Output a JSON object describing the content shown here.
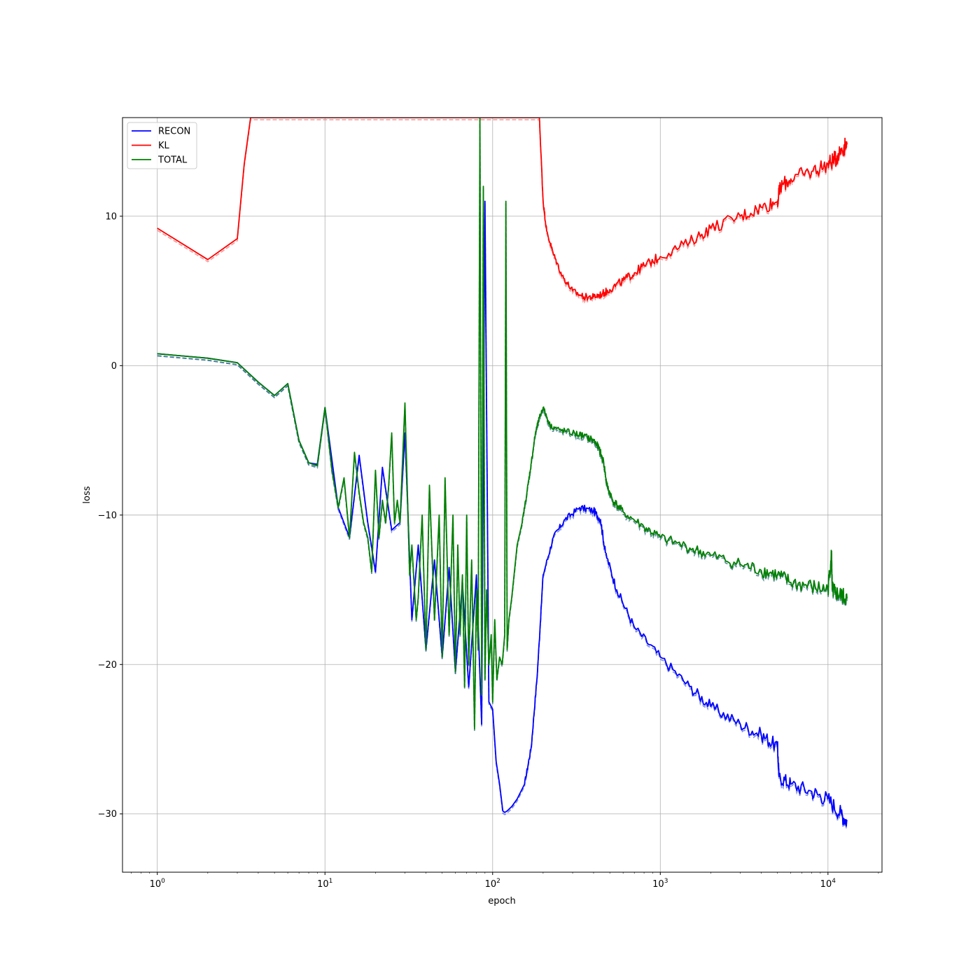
{
  "chart_data": {
    "type": "line",
    "xscale": "log",
    "xlabel": "epoch",
    "ylabel": "loss",
    "xlim": [
      0.62,
      21000
    ],
    "ylim": [
      -33.9,
      16.6
    ],
    "grid": true,
    "legend_position": "top-left",
    "x_ticks": [
      {
        "value": 1,
        "label": "10",
        "exp": "0"
      },
      {
        "value": 10,
        "label": "10",
        "exp": "1"
      },
      {
        "value": 100,
        "label": "10",
        "exp": "2"
      },
      {
        "value": 1000,
        "label": "10",
        "exp": "3"
      },
      {
        "value": 10000,
        "label": "10",
        "exp": "4"
      }
    ],
    "y_ticks": [
      {
        "value": 10,
        "label": "10"
      },
      {
        "value": 0,
        "label": "0"
      },
      {
        "value": -10,
        "label": "−10"
      },
      {
        "value": -20,
        "label": "−20"
      },
      {
        "value": -30,
        "label": "−30"
      }
    ],
    "series": [
      {
        "name": "RECON",
        "color": "#0000ff",
        "style": "solid",
        "x": [
          1,
          2,
          3,
          4,
          5,
          6,
          7,
          8,
          9,
          10,
          12,
          14,
          16,
          18,
          20,
          22,
          25,
          28,
          30,
          33,
          36,
          40,
          45,
          50,
          55,
          60,
          66,
          72,
          80,
          86,
          90,
          95,
          100,
          105,
          110,
          115,
          118,
          122,
          130,
          140,
          155,
          170,
          185,
          200,
          230,
          270,
          330,
          400,
          440,
          470,
          550,
          700,
          1000,
          1500,
          2000,
          3000,
          4000,
          5000,
          5100,
          6000,
          8000,
          10000,
          12000,
          13000
        ],
        "y": [
          0.8,
          0.5,
          0.2,
          -1.1,
          -2.0,
          -1.2,
          -5.0,
          -6.5,
          -6.6,
          -2.8,
          -9.5,
          -11.5,
          -6.0,
          -10.5,
          -13.8,
          -6.8,
          -11.0,
          -10.5,
          -4.5,
          -17.0,
          -12.0,
          -19.0,
          -13.0,
          -19.5,
          -13.5,
          -20.5,
          -14.5,
          -21.5,
          -14.0,
          -24.0,
          11.0,
          -22.5,
          -23.0,
          -26.5,
          -28.0,
          -29.8,
          -29.9,
          -29.8,
          -29.5,
          -29.0,
          -28.0,
          -25.5,
          -20.5,
          -14.0,
          -11.5,
          -10.3,
          -9.5,
          -9.7,
          -10.3,
          -12.5,
          -15.0,
          -17.5,
          -19.5,
          -21.5,
          -22.8,
          -24.0,
          -24.7,
          -25.5,
          -27.5,
          -28.0,
          -28.5,
          -29.0,
          -30.0,
          -30.5
        ]
      },
      {
        "name": "KL",
        "color": "#ff0000",
        "style": "solid",
        "x": [
          1,
          2,
          3,
          3.3,
          3.6,
          190,
          200,
          210,
          230,
          260,
          300,
          350,
          400,
          450,
          500,
          600,
          700,
          800,
          1000,
          1500,
          2000,
          3000,
          4000,
          5000,
          5200,
          6000,
          8000,
          10000,
          11000,
          12000,
          13000
        ],
        "y": [
          9.2,
          7.1,
          8.5,
          13.5,
          16.6,
          16.6,
          11.0,
          9.0,
          7.5,
          6.0,
          5.0,
          4.6,
          4.6,
          4.8,
          5.1,
          5.7,
          6.2,
          6.7,
          7.3,
          8.3,
          9.2,
          10.0,
          10.6,
          11.0,
          12.0,
          12.5,
          13.0,
          13.5,
          13.8,
          14.5,
          14.8
        ]
      },
      {
        "name": "TOTAL",
        "color": "#008000",
        "style": "solid",
        "x": [
          1,
          2,
          3,
          4,
          5,
          6,
          7,
          8,
          9,
          10,
          11,
          12,
          13,
          14,
          15,
          16,
          17,
          18,
          19,
          20,
          21,
          22,
          23,
          24,
          25,
          26,
          27,
          28,
          30,
          32,
          33,
          35,
          36,
          38,
          40,
          42,
          45,
          48,
          50,
          52,
          55,
          58,
          60,
          62,
          64,
          66,
          68,
          70,
          72,
          75,
          78,
          80,
          82,
          84,
          86,
          88,
          90,
          92,
          95,
          98,
          100,
          103,
          106,
          110,
          114,
          118,
          120,
          122,
          125,
          130,
          140,
          150,
          160,
          170,
          180,
          190,
          200,
          220,
          250,
          300,
          350,
          400,
          430,
          460,
          480,
          520,
          600,
          800,
          1000,
          1500,
          2000,
          3000,
          4000,
          5000,
          6000,
          8000,
          10000,
          10500,
          10600,
          11000,
          12000,
          13000
        ],
        "y": [
          0.8,
          0.5,
          0.2,
          -1.1,
          -2.0,
          -1.2,
          -5.0,
          -6.5,
          -6.7,
          -2.8,
          -7.0,
          -9.5,
          -7.5,
          -11.5,
          -5.8,
          -8.5,
          -10.5,
          -11.5,
          -13.8,
          -7.0,
          -11.5,
          -9.0,
          -10.5,
          -8.0,
          -4.5,
          -10.5,
          -9.0,
          -10.5,
          -2.5,
          -14.0,
          -12.0,
          -17.0,
          -15.5,
          -10.0,
          -19.0,
          -8.0,
          -17.0,
          -10.0,
          -19.5,
          -7.5,
          -18.0,
          -10.0,
          -20.5,
          -12.0,
          -18.0,
          -14.0,
          -21.5,
          -10.0,
          -20.0,
          -13.0,
          -24.3,
          -15.0,
          -19.0,
          16.6,
          -22.0,
          12.0,
          -21.0,
          -15.0,
          -20.0,
          -18.0,
          -22.5,
          -17.0,
          -21.0,
          -19.5,
          -20.0,
          -18.0,
          11.0,
          -19.0,
          -17.0,
          -15.5,
          -12.0,
          -10.5,
          -8.5,
          -6.5,
          -4.5,
          -3.5,
          -2.8,
          -4.0,
          -4.3,
          -4.5,
          -4.7,
          -5.0,
          -5.5,
          -6.5,
          -8.0,
          -9.0,
          -9.8,
          -10.8,
          -11.5,
          -12.2,
          -12.7,
          -13.3,
          -13.7,
          -14.0,
          -14.5,
          -14.8,
          -15.0,
          -12.5,
          -15.0,
          -15.2,
          -15.4,
          -15.6
        ]
      }
    ]
  }
}
